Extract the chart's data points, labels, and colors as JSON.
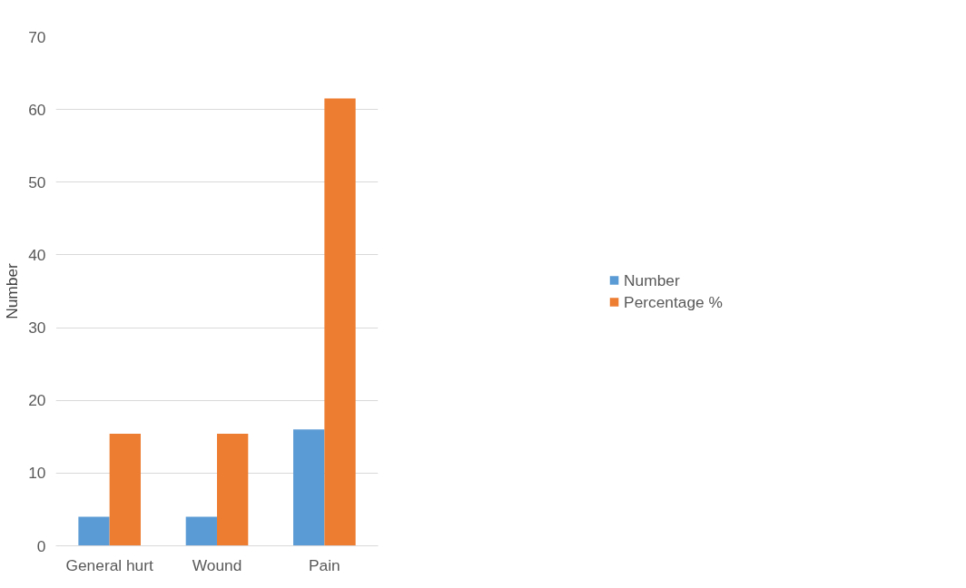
{
  "chart_data": {
    "type": "bar",
    "ylabel": "Number",
    "categories": [
      "General hurt",
      "Wound",
      "Pain"
    ],
    "series": [
      {
        "name": "Number",
        "color": "#5b9bd5",
        "values": [
          4,
          4,
          16
        ]
      },
      {
        "name": "Percentage %",
        "color": "#ed7d31",
        "values": [
          15.4,
          15.4,
          61.5
        ]
      }
    ],
    "ylim": [
      0,
      70
    ],
    "yticks": [
      0,
      10,
      20,
      30,
      40,
      50,
      60,
      70
    ],
    "grid": "y",
    "legend": "right"
  }
}
